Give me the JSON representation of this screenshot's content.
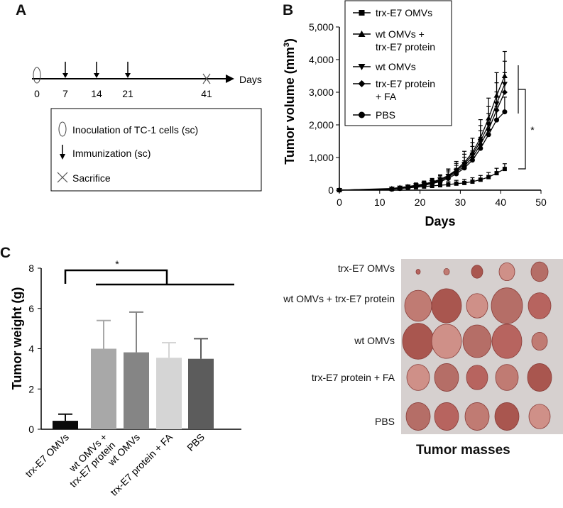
{
  "panels": {
    "a": "A",
    "b": "B",
    "c": "C"
  },
  "panel_a": {
    "axis_label": "Days",
    "days": [
      "0",
      "7",
      "14",
      "21",
      "41"
    ],
    "legend": {
      "inoculation": "Inoculation of TC-1 cells (sc)",
      "immunization": "Immunization (sc)",
      "sacrifice": "Sacrifice"
    }
  },
  "chart_data": [
    {
      "id": "tumor-volume",
      "type": "line",
      "title": "",
      "xlabel": "Days",
      "ylabel": "Tumor volume (mm3)",
      "xlim": [
        0,
        50
      ],
      "ylim": [
        0,
        5000
      ],
      "xticks": [
        "0",
        "10",
        "20",
        "30",
        "40",
        "50"
      ],
      "yticks": [
        "0",
        "1,000",
        "2,000",
        "3,000",
        "4,000",
        "5,000"
      ],
      "significance": "*",
      "x": [
        0,
        13,
        15,
        17,
        19,
        21,
        23,
        25,
        27,
        29,
        31,
        33,
        35,
        37,
        39,
        41
      ],
      "series": [
        {
          "name": "trx-E7 OMVs",
          "marker": "square",
          "values": [
            0,
            30,
            50,
            70,
            90,
            110,
            130,
            150,
            170,
            200,
            220,
            260,
            320,
            400,
            520,
            650
          ],
          "errors": [
            0,
            20,
            30,
            40,
            50,
            60,
            70,
            80,
            90,
            100,
            110,
            120,
            130,
            140,
            150,
            160
          ]
        },
        {
          "name": "wt OMVs + trx-E7 protein",
          "marker": "triangle-up",
          "values": [
            0,
            50,
            80,
            110,
            150,
            190,
            250,
            330,
            450,
            620,
            850,
            1150,
            1600,
            2200,
            2900,
            3500
          ],
          "errors": [
            0,
            30,
            40,
            50,
            70,
            90,
            110,
            140,
            200,
            260,
            340,
            440,
            560,
            620,
            700,
            750
          ]
        },
        {
          "name": "wt OMVs",
          "marker": "triangle-down",
          "values": [
            0,
            40,
            70,
            100,
            140,
            180,
            240,
            320,
            430,
            590,
            800,
            1080,
            1500,
            2000,
            2650,
            3250
          ],
          "errors": [
            0,
            30,
            40,
            50,
            60,
            80,
            100,
            130,
            180,
            230,
            300,
            380,
            480,
            560,
            640,
            700
          ]
        },
        {
          "name": "trx-E7 protein + FA",
          "marker": "diamond",
          "values": [
            0,
            35,
            60,
            90,
            130,
            170,
            220,
            290,
            400,
            550,
            740,
            1000,
            1400,
            1850,
            2450,
            3000
          ],
          "errors": [
            0,
            25,
            35,
            45,
            60,
            75,
            95,
            120,
            160,
            210,
            270,
            340,
            420,
            500,
            560,
            600
          ]
        },
        {
          "name": "PBS",
          "marker": "circle",
          "values": [
            0,
            30,
            50,
            80,
            110,
            150,
            200,
            260,
            360,
            500,
            680,
            920,
            1280,
            1700,
            2150,
            2400
          ],
          "errors": [
            0,
            20,
            30,
            40,
            50,
            65,
            80,
            100,
            130,
            170,
            220,
            280,
            340,
            380,
            420,
            450
          ]
        }
      ]
    },
    {
      "id": "tumor-weight",
      "type": "bar",
      "title": "",
      "xlabel": "",
      "ylabel": "Tumor weight (g)",
      "ylim": [
        0,
        8
      ],
      "yticks": [
        "0",
        "2",
        "4",
        "6",
        "8"
      ],
      "significance": "*",
      "categories": [
        "trx-E7 OMVs",
        "wt OMVs + trx-E7 protein",
        "wt OMVs",
        "trx-E7 protein + FA",
        "PBS"
      ],
      "category_lines": [
        [
          "trx-E7 OMVs"
        ],
        [
          "wt OMVs +",
          "trx-E7 protein"
        ],
        [
          "wt OMVs"
        ],
        [
          "trx-E7 protein + FA"
        ],
        [
          "PBS"
        ]
      ],
      "values": [
        0.42,
        4.0,
        3.82,
        3.55,
        3.5
      ],
      "errors": [
        0.33,
        1.4,
        2.0,
        0.75,
        1.0
      ],
      "colors": [
        "#0a0a0a",
        "#a8a8a8",
        "#858585",
        "#d5d5d5",
        "#5c5c5c"
      ]
    }
  ],
  "photo": {
    "caption": "Tumor masses",
    "rows": [
      "trx-E7 OMVs",
      "wt OMVs + trx-E7 protein",
      "wt OMVs",
      "trx-E7 protein + FA",
      "PBS"
    ],
    "tumor_sizes": [
      [
        0.15,
        0.2,
        0.4,
        0.55,
        0.6
      ],
      [
        0.95,
        1.05,
        0.75,
        1.1,
        0.8
      ],
      [
        1.1,
        1.05,
        1.0,
        1.05,
        0.55
      ],
      [
        0.8,
        0.85,
        0.75,
        0.8,
        0.85
      ],
      [
        0.85,
        0.85,
        0.85,
        0.85,
        0.75
      ]
    ]
  }
}
